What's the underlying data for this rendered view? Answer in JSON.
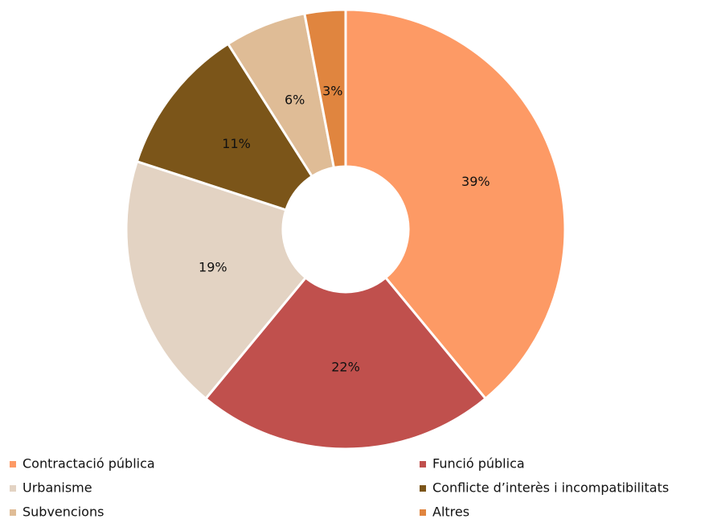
{
  "chart_data": {
    "type": "donut",
    "categories": [
      "Contractació pública",
      "Funció pública",
      "Urbanisme",
      "Conflicte d’interès i incompatibilitats",
      "Subvencions",
      "Altres"
    ],
    "values": [
      39,
      22,
      19,
      11,
      6,
      3
    ],
    "value_labels": [
      "39%",
      "22%",
      "19%",
      "11%",
      "6%",
      "3%"
    ],
    "colors": [
      "#fd9a65",
      "#c0504d",
      "#e3d3c3",
      "#7b5519",
      "#dfbc96",
      "#e0853f"
    ],
    "legend": "bottom"
  }
}
